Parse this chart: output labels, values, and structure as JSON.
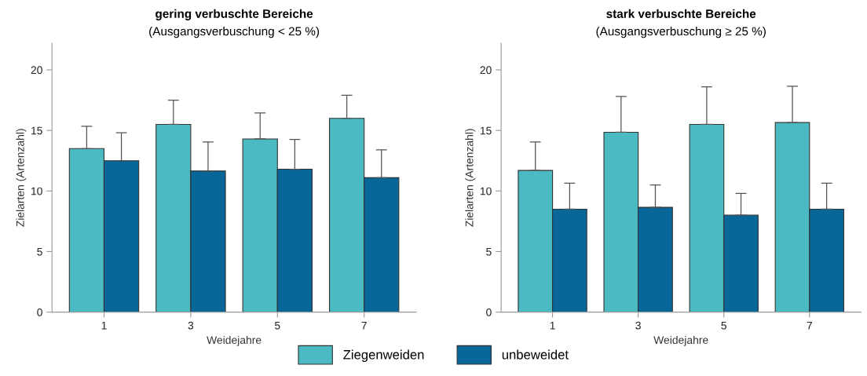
{
  "chart_data": [
    {
      "type": "bar",
      "title": "gering verbuschte Bereiche",
      "subtitle": "(Ausgangsverbuschung < 25 %)",
      "xlabel": "Weidejahre",
      "ylabel": "Zielarten (Artenzahl)",
      "categories": [
        "1",
        "3",
        "5",
        "7"
      ],
      "ylim": [
        0,
        22.2
      ],
      "yticks": [
        0,
        5,
        10,
        15,
        20
      ],
      "legend": "bottom",
      "grid": false,
      "series": [
        {
          "name": "Ziegenweiden",
          "color": "#4bbac2",
          "values": [
            13.5,
            15.5,
            14.3,
            16.0
          ],
          "errors": [
            [
              13.5,
              15.35
            ],
            [
              15.5,
              17.5
            ],
            [
              14.3,
              16.45
            ],
            [
              16.0,
              17.9
            ]
          ]
        },
        {
          "name": "unbeweidet",
          "color": "#086699",
          "values": [
            12.5,
            11.65,
            11.8,
            11.1
          ],
          "errors": [
            [
              12.5,
              14.8
            ],
            [
              11.65,
              14.05
            ],
            [
              11.8,
              14.25
            ],
            [
              11.1,
              13.4
            ]
          ]
        }
      ]
    },
    {
      "type": "bar",
      "title": "stark verbuschte Bereiche",
      "subtitle": "(Ausgangsverbuschung ≥ 25 %)",
      "xlabel": "Weidejahre",
      "ylabel": "Zielarten (Artenzahl)",
      "categories": [
        "1",
        "3",
        "5",
        "7"
      ],
      "ylim": [
        0,
        22.2
      ],
      "yticks": [
        0,
        5,
        10,
        15,
        20
      ],
      "grid": false,
      "series": [
        {
          "color": "#4bbac2",
          "values": [
            11.7,
            14.85,
            15.5,
            15.65
          ],
          "errors": [
            [
              11.7,
              14.05
            ],
            [
              14.85,
              17.8
            ],
            [
              15.5,
              18.6
            ],
            [
              15.65,
              18.65
            ]
          ]
        },
        {
          "color": "#086699",
          "values": [
            8.5,
            8.65,
            8.0,
            8.5
          ],
          "errors": [
            [
              8.5,
              10.65
            ],
            [
              8.65,
              10.5
            ],
            [
              8.0,
              9.8
            ],
            [
              8.5,
              10.65
            ]
          ]
        }
      ]
    }
  ]
}
